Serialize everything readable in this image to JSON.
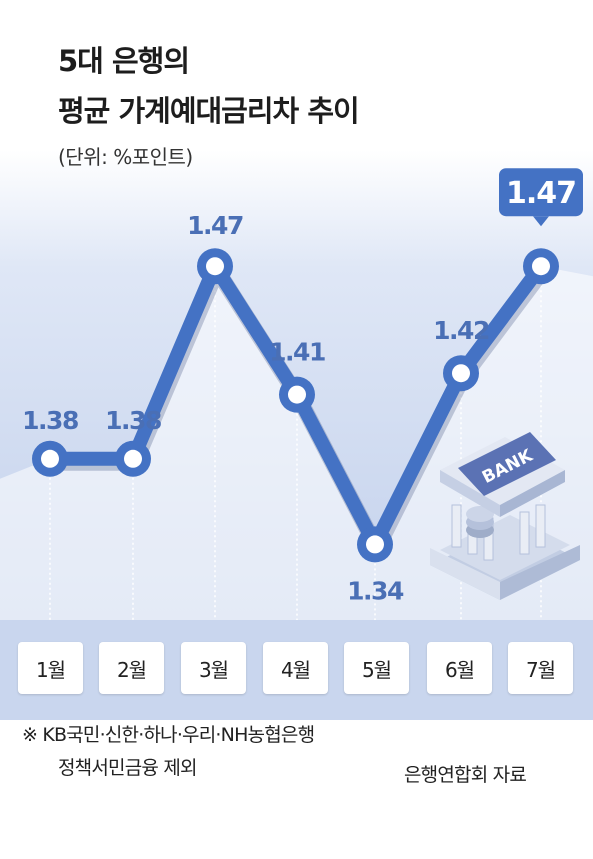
{
  "title_line1": "5대 은행의",
  "title_line2": "평균 가계예대금리차 추이",
  "unit": "(단위: %포인트)",
  "chart_data": {
    "type": "line",
    "title": "5대 은행의 평균 가계예대금리차 추이",
    "unit": "(단위: %포인트)",
    "categories": [
      "1월",
      "2월",
      "3월",
      "4월",
      "5월",
      "6월",
      "7월"
    ],
    "values": [
      1.38,
      1.38,
      1.47,
      1.41,
      1.34,
      1.42,
      1.47
    ],
    "labels": [
      "1.38",
      "1.38",
      "1.47",
      "1.41",
      "1.34",
      "1.42",
      "1.47"
    ],
    "ylim": [
      1.3,
      1.5
    ],
    "grid": false,
    "highlight_last": true,
    "line_color": "#4472c4",
    "highlight_color": "#4472c4"
  },
  "bank_sign": "BANK",
  "footnote_line1": "※ KB국민·신한·하나·우리·NH농협은행",
  "footnote_line2": "정책서민금융 제외",
  "source": "은행연합회 자료",
  "colors": {
    "background_top": "#c5d3ee",
    "band": "#c9d6ee",
    "line": "#4472c4",
    "label": "#4a6fb5"
  },
  "icons": [
    "bank-building-icon"
  ]
}
